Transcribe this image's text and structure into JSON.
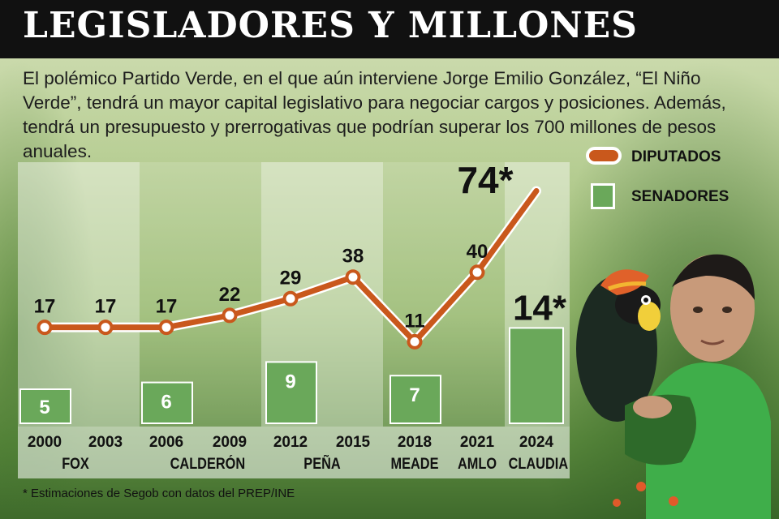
{
  "title": "LEGISLADORES Y MILLONES",
  "intro": "El polémico Partido Verde, en el que aún interviene Jorge Emilio González, “El Niño Verde”, tendrá un mayor capital legislativo para negociar cargos y posiciones. Además, tendrá un presupuesto y prerrogativas que podrían superar los 700 millones de pesos anuales.",
  "legend": {
    "diputados": "DIPUTADOS",
    "senadores": "SENADORES"
  },
  "footnote": "* Estimaciones de Segob con datos del PREP/INE",
  "colors": {
    "diputados": "#c9581c",
    "senadores": "#6aa85a",
    "title_bg": "#111111"
  },
  "chart_data": {
    "type": "line",
    "title": "LEGISLADORES Y MILLONES",
    "x": [
      "2000",
      "2003",
      "2006",
      "2009",
      "2012",
      "2015",
      "2018",
      "2021",
      "2024"
    ],
    "groups": [
      {
        "label": "FOX",
        "years": [
          "2000",
          "2003"
        ]
      },
      {
        "label": "CALDERÓN",
        "years": [
          "2006",
          "2009"
        ]
      },
      {
        "label": "PEÑA",
        "years": [
          "2012",
          "2015"
        ]
      },
      {
        "label": "MEADE",
        "years": [
          "2018"
        ]
      },
      {
        "label": "AMLO",
        "years": [
          "2021"
        ]
      },
      {
        "label": "CLAUDIA",
        "years": [
          "2024"
        ]
      }
    ],
    "series": [
      {
        "name": "DIPUTADOS",
        "type": "line",
        "values": [
          17,
          17,
          17,
          22,
          29,
          38,
          11,
          40,
          74
        ],
        "labels": [
          "17",
          "17",
          "17",
          "22",
          "29",
          "38",
          "11",
          "40",
          "74*"
        ]
      },
      {
        "name": "SENADORES",
        "type": "bar",
        "points": [
          {
            "year": "2000",
            "value": 5,
            "label": "5"
          },
          {
            "year": "2006",
            "value": 6,
            "label": "6"
          },
          {
            "year": "2012",
            "value": 9,
            "label": "9"
          },
          {
            "year": "2018",
            "value": 7,
            "label": "7"
          },
          {
            "year": "2024",
            "value": 14,
            "label": "14*"
          }
        ]
      }
    ]
  }
}
